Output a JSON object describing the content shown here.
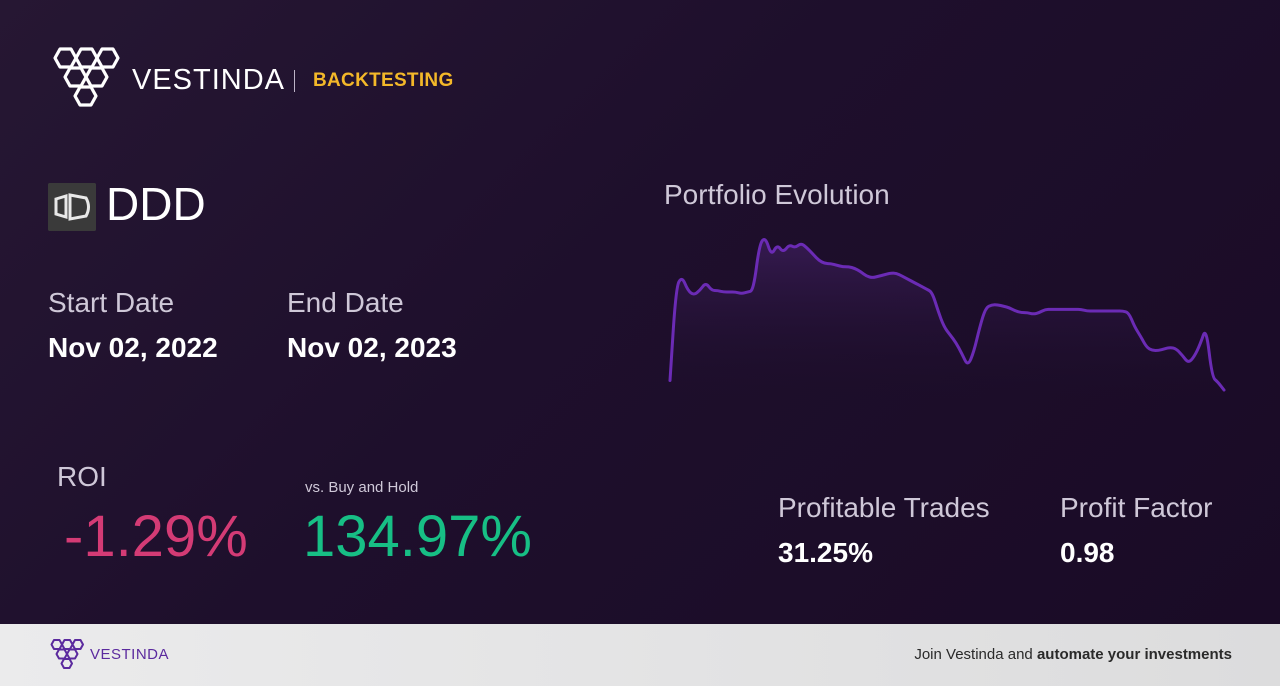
{
  "brand": {
    "name": "VESTINDA",
    "tagline": "BACKTESTING"
  },
  "ticker": {
    "symbol": "DDD",
    "icon": "3d-systems-logo-icon"
  },
  "dates": {
    "start_label": "Start Date",
    "start_value": "Nov 02, 2022",
    "end_label": "End Date",
    "end_value": "Nov 02, 2023"
  },
  "roi": {
    "label": "ROI",
    "value": "-1.29%",
    "vs_label": "vs. Buy and Hold",
    "vs_value": "134.97%"
  },
  "stats": {
    "profitable_trades_label": "Profitable Trades",
    "profitable_trades_value": "31.25%",
    "profit_factor_label": "Profit Factor",
    "profit_factor_value": "0.98"
  },
  "chart_data": {
    "type": "area",
    "title": "Portfolio Evolution",
    "xlabel": "",
    "ylabel": "",
    "grid": false,
    "y_normalized": [
      0.06,
      0.65,
      0.72,
      0.63,
      0.6,
      0.63,
      0.68,
      0.63,
      0.63,
      0.62,
      0.62,
      0.62,
      0.61,
      0.62,
      0.63,
      0.92,
      0.97,
      0.85,
      0.92,
      0.87,
      0.92,
      0.9,
      0.93,
      0.9,
      0.86,
      0.82,
      0.8,
      0.8,
      0.79,
      0.78,
      0.78,
      0.77,
      0.75,
      0.72,
      0.71,
      0.72,
      0.73,
      0.74,
      0.74,
      0.72,
      0.7,
      0.68,
      0.66,
      0.64,
      0.62,
      0.5,
      0.4,
      0.35,
      0.3,
      0.23,
      0.15,
      0.24,
      0.4,
      0.52,
      0.54,
      0.54,
      0.53,
      0.52,
      0.5,
      0.49,
      0.49,
      0.48,
      0.49,
      0.51,
      0.51,
      0.51,
      0.51,
      0.51,
      0.51,
      0.51,
      0.5,
      0.5,
      0.5,
      0.5,
      0.5,
      0.5,
      0.5,
      0.49,
      0.4,
      0.34,
      0.27,
      0.25,
      0.25,
      0.26,
      0.27,
      0.26,
      0.22,
      0.17,
      0.21,
      0.29,
      0.4,
      0.08,
      0.05,
      0.0
    ]
  },
  "footer": {
    "brand": "VESTINDA",
    "cta_prefix": "Join Vestinda and ",
    "cta_bold": "automate your investments"
  },
  "colors": {
    "accent_yellow": "#f3b829",
    "roi_negative": "#d43b75",
    "roi_positive": "#17bf85",
    "chart_line": "#6b2bb5",
    "footer_brand": "#5b2a9e"
  }
}
